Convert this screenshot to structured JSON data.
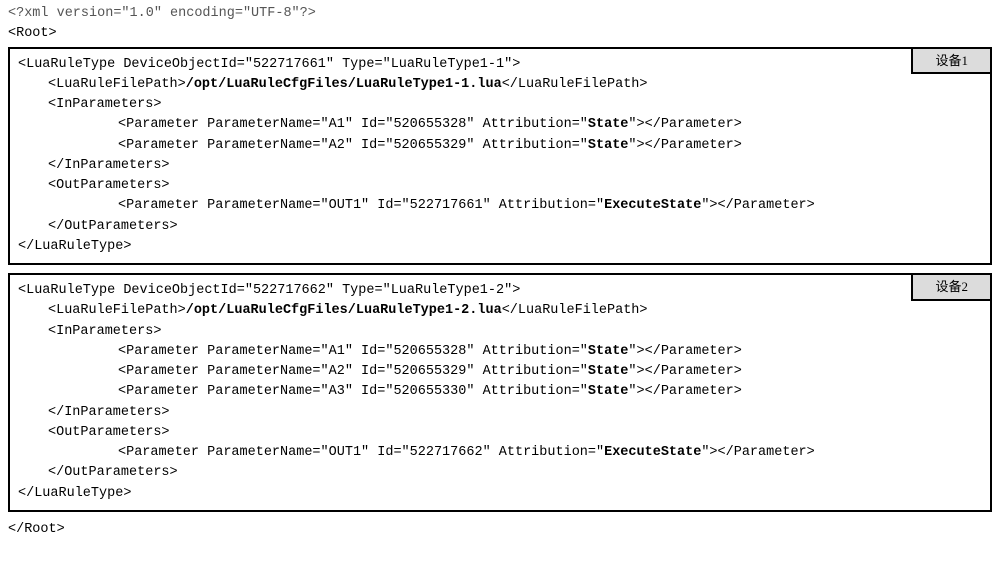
{
  "xml_decl": "<?xml version=\"1.0\" encoding=\"UTF-8\"?>",
  "root_open": "<Root>",
  "root_close": "</Root>",
  "boxes": [
    {
      "label": "设备1",
      "luaRuleType_open_prefix": "<LuaRuleType DeviceObjectId=\"",
      "deviceObjectId": "522717661",
      "luaRuleType_open_mid": "\" Type=\"",
      "type": "LuaRuleType1-1",
      "luaRuleType_open_suffix": "\">",
      "filepath_open": "<LuaRuleFilePath>",
      "filepath": "/opt/LuaRuleCfgFiles/LuaRuleType1-1.lua",
      "filepath_close": "</LuaRuleFilePath>",
      "inparams_open": "<InParameters>",
      "in_params": [
        {
          "pre": "<Parameter ParameterName=\"",
          "name": "A1",
          "mid1": "\" Id=\"",
          "id": "520655328",
          "mid2": "\" Attribution=\"",
          "attr": "State",
          "post": "\"></Parameter>"
        },
        {
          "pre": "<Parameter ParameterName=\"",
          "name": "A2",
          "mid1": "\" Id=\"",
          "id": "520655329",
          "mid2": "\" Attribution=\"",
          "attr": "State",
          "post": "\"></Parameter>"
        }
      ],
      "inparams_close": "</InParameters>",
      "outparams_open": "<OutParameters>",
      "out_params": [
        {
          "pre": "<Parameter ParameterName=\"",
          "name": "OUT1",
          "mid1": "\" Id=\"",
          "id": "522717661",
          "mid2": "\" Attribution=\"",
          "attr": "ExecuteState",
          "post": "\"></Parameter>"
        }
      ],
      "outparams_close": "</OutParameters>",
      "luaRuleType_close": "</LuaRuleType>"
    },
    {
      "label": "设备2",
      "luaRuleType_open_prefix": "<LuaRuleType DeviceObjectId=\"",
      "deviceObjectId": "522717662",
      "luaRuleType_open_mid": "\" Type=\"",
      "type": "LuaRuleType1-2",
      "luaRuleType_open_suffix": "\">",
      "filepath_open": "<LuaRuleFilePath>",
      "filepath": "/opt/LuaRuleCfgFiles/LuaRuleType1-2.lua",
      "filepath_close": "</LuaRuleFilePath>",
      "inparams_open": "<InParameters>",
      "in_params": [
        {
          "pre": "<Parameter ParameterName=\"",
          "name": "A1",
          "mid1": "\" Id=\"",
          "id": "520655328",
          "mid2": "\" Attribution=\"",
          "attr": "State",
          "post": "\"></Parameter>"
        },
        {
          "pre": "<Parameter ParameterName=\"",
          "name": "A2",
          "mid1": "\" Id=\"",
          "id": "520655329",
          "mid2": "\" Attribution=\"",
          "attr": "State",
          "post": "\"></Parameter>"
        },
        {
          "pre": "<Parameter ParameterName=\"",
          "name": "A3",
          "mid1": "\" Id=\"",
          "id": "520655330",
          "mid2": "\" Attribution=\"",
          "attr": "State",
          "post": "\"></Parameter>"
        }
      ],
      "inparams_close": "</InParameters>",
      "outparams_open": "<OutParameters>",
      "out_params": [
        {
          "pre": "<Parameter ParameterName=\"",
          "name": "OUT1",
          "mid1": "\" Id=\"",
          "id": "522717662",
          "mid2": "\" Attribution=\"",
          "attr": "ExecuteState",
          "post": "\"></Parameter>"
        }
      ],
      "outparams_close": "</OutParameters>",
      "luaRuleType_close": "</LuaRuleType>"
    }
  ]
}
